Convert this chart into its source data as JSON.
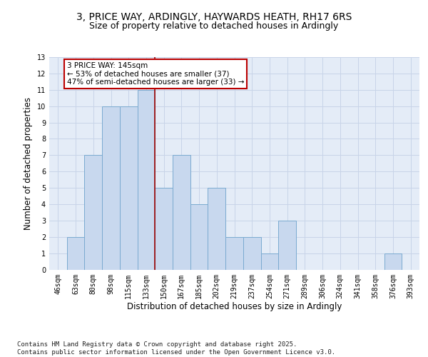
{
  "title1": "3, PRICE WAY, ARDINGLY, HAYWARDS HEATH, RH17 6RS",
  "title2": "Size of property relative to detached houses in Ardingly",
  "xlabel": "Distribution of detached houses by size in Ardingly",
  "ylabel": "Number of detached properties",
  "categories": [
    "46sqm",
    "63sqm",
    "80sqm",
    "98sqm",
    "115sqm",
    "133sqm",
    "150sqm",
    "167sqm",
    "185sqm",
    "202sqm",
    "219sqm",
    "237sqm",
    "254sqm",
    "271sqm",
    "289sqm",
    "306sqm",
    "324sqm",
    "341sqm",
    "358sqm",
    "376sqm",
    "393sqm"
  ],
  "values": [
    0,
    2,
    7,
    10,
    10,
    11,
    5,
    7,
    4,
    5,
    2,
    2,
    1,
    3,
    0,
    0,
    0,
    0,
    0,
    1,
    0
  ],
  "bar_color": "#c8d8ee",
  "bar_edge_color": "#7aaad0",
  "grid_color": "#c8d4e8",
  "background_color": "#e4ecf7",
  "vline_x_idx": 5.5,
  "vline_color": "#9b0000",
  "annotation_line1": "3 PRICE WAY: 145sqm",
  "annotation_line2": "← 53% of detached houses are smaller (37)",
  "annotation_line3": "47% of semi-detached houses are larger (33) →",
  "annotation_box_color": "white",
  "annotation_box_edge_color": "#bb0000",
  "ylim_max": 13,
  "yticks": [
    0,
    1,
    2,
    3,
    4,
    5,
    6,
    7,
    8,
    9,
    10,
    11,
    12,
    13
  ],
  "footer": "Contains HM Land Registry data © Crown copyright and database right 2025.\nContains public sector information licensed under the Open Government Licence v3.0.",
  "title_fontsize": 10,
  "subtitle_fontsize": 9,
  "axis_label_fontsize": 8.5,
  "tick_fontsize": 7,
  "annotation_fontsize": 7.5,
  "footer_fontsize": 6.5
}
